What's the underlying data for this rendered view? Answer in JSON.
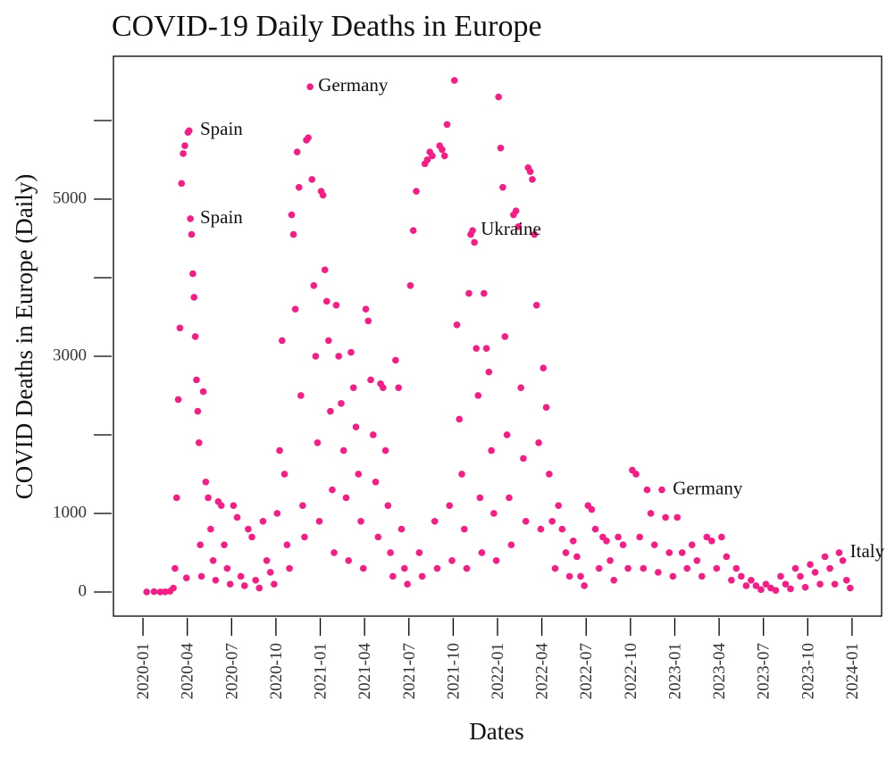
{
  "chart_data": {
    "type": "scatter",
    "title": "COVID-19 Daily Deaths in Europe",
    "x_label": "Dates",
    "y_label": "COVID Deaths in Europe (Daily)",
    "color": "#f51d86",
    "xlim": [
      "2019-11",
      "2024-03"
    ],
    "xticks": [
      "2020-01",
      "2020-04",
      "2020-07",
      "2020-10",
      "2021-01",
      "2021-04",
      "2021-07",
      "2021-10",
      "2022-01",
      "2022-04",
      "2022-07",
      "2022-10",
      "2023-01",
      "2023-04",
      "2023-07",
      "2023-10",
      "2024-01"
    ],
    "ylim": [
      -307,
      6818
    ],
    "yticks": [
      0,
      1000,
      3000,
      5000
    ],
    "y_minor_ticks": [
      2000,
      4000,
      6000
    ],
    "x": [
      "2020-01",
      "2020-01",
      "2020-02",
      "2020-02",
      "2020-02",
      "2020-03",
      "2020-03",
      "2020-03",
      "2020-03",
      "2020-03",
      "2020-03",
      "2020-03",
      "2020-03",
      "2020-03",
      "2020-04",
      "2020-04",
      "2020-04",
      "2020-04",
      "2020-04",
      "2020-04",
      "2020-04",
      "2020-04",
      "2020-04",
      "2020-04",
      "2020-04",
      "2020-04",
      "2020-05",
      "2020-05",
      "2020-05",
      "2020-05",
      "2020-05",
      "2020-05",
      "2020-06",
      "2020-06",
      "2020-06",
      "2020-06",
      "2020-06",
      "2020-07",
      "2020-07",
      "2020-07",
      "2020-07",
      "2020-08",
      "2020-08",
      "2020-08",
      "2020-08",
      "2020-09",
      "2020-09",
      "2020-09",
      "2020-09",
      "2020-10",
      "2020-10",
      "2020-10",
      "2020-10",
      "2020-10",
      "2020-10",
      "2020-11",
      "2020-11",
      "2020-11",
      "2020-11",
      "2020-11",
      "2020-11",
      "2020-11",
      "2020-11",
      "2020-12",
      "2020-12",
      "2020-12",
      "2020-12",
      "2020-12",
      "2020-12",
      "2020-12",
      "2020-12",
      "2021-01",
      "2021-01",
      "2021-01",
      "2021-01",
      "2021-01",
      "2021-01",
      "2021-01",
      "2021-01",
      "2021-02",
      "2021-02",
      "2021-02",
      "2021-02",
      "2021-02",
      "2021-02",
      "2021-03",
      "2021-03",
      "2021-03",
      "2021-03",
      "2021-03",
      "2021-03",
      "2021-04",
      "2021-04",
      "2021-04",
      "2021-04",
      "2021-04",
      "2021-04",
      "2021-05",
      "2021-05",
      "2021-05",
      "2021-05",
      "2021-05",
      "2021-05",
      "2021-06",
      "2021-06",
      "2021-06",
      "2021-06",
      "2021-06",
      "2021-07",
      "2021-07",
      "2021-07",
      "2021-07",
      "2021-07",
      "2021-08",
      "2021-08",
      "2021-08",
      "2021-08",
      "2021-08",
      "2021-08",
      "2021-09",
      "2021-09",
      "2021-09",
      "2021-09",
      "2021-09",
      "2021-09",
      "2021-10",
      "2021-10",
      "2021-10",
      "2021-10",
      "2021-10",
      "2021-10",
      "2021-11",
      "2021-11",
      "2021-11",
      "2021-11",
      "2021-11",
      "2021-11",
      "2021-11",
      "2021-11",
      "2021-12",
      "2021-12",
      "2021-12",
      "2021-12",
      "2021-12",
      "2021-12",
      "2022-01",
      "2022-01",
      "2022-01",
      "2022-01",
      "2022-01",
      "2022-01",
      "2022-01",
      "2022-02",
      "2022-02",
      "2022-02",
      "2022-02",
      "2022-02",
      "2022-02",
      "2022-03",
      "2022-03",
      "2022-03",
      "2022-03",
      "2022-03",
      "2022-03",
      "2022-03",
      "2022-04",
      "2022-04",
      "2022-04",
      "2022-04",
      "2022-04",
      "2022-05",
      "2022-05",
      "2022-05",
      "2022-05",
      "2022-06",
      "2022-06",
      "2022-06",
      "2022-06",
      "2022-07",
      "2022-07",
      "2022-07",
      "2022-07",
      "2022-08",
      "2022-08",
      "2022-08",
      "2022-08",
      "2022-09",
      "2022-09",
      "2022-09",
      "2022-10",
      "2022-10",
      "2022-10",
      "2022-10",
      "2022-11",
      "2022-11",
      "2022-11",
      "2022-11",
      "2022-12",
      "2022-12",
      "2022-12",
      "2022-12",
      "2023-01",
      "2023-01",
      "2023-01",
      "2023-02",
      "2023-02",
      "2023-02",
      "2023-03",
      "2023-03",
      "2023-03",
      "2023-04",
      "2023-04",
      "2023-04",
      "2023-05",
      "2023-05",
      "2023-05",
      "2023-06",
      "2023-06",
      "2023-06",
      "2023-07",
      "2023-07",
      "2023-07",
      "2023-08",
      "2023-08",
      "2023-08",
      "2023-09",
      "2023-09",
      "2023-09",
      "2023-10",
      "2023-10",
      "2023-10",
      "2023-11",
      "2023-11",
      "2023-11",
      "2023-12",
      "2023-12",
      "2023-12",
      "2023-12"
    ],
    "values": [
      0,
      5,
      0,
      2,
      10,
      50,
      300,
      1200,
      2450,
      3360,
      5200,
      5580,
      5680,
      180,
      5850,
      5870,
      4750,
      4550,
      4050,
      3750,
      3250,
      2700,
      2300,
      1900,
      600,
      200,
      2550,
      1400,
      1200,
      800,
      400,
      150,
      1150,
      1100,
      600,
      300,
      100,
      1100,
      950,
      200,
      80,
      800,
      700,
      150,
      50,
      900,
      400,
      250,
      100,
      1000,
      1800,
      3200,
      1500,
      600,
      300,
      4800,
      4550,
      3600,
      5600,
      5150,
      2500,
      1100,
      700,
      5750,
      5780,
      6430,
      5250,
      3900,
      3000,
      1900,
      900,
      5100,
      5050,
      4100,
      3700,
      3200,
      2300,
      1300,
      500,
      3650,
      3000,
      2400,
      1800,
      1200,
      400,
      3050,
      2600,
      2100,
      1500,
      900,
      300,
      3600,
      3450,
      2700,
      2000,
      1400,
      700,
      2650,
      2600,
      1800,
      1100,
      500,
      200,
      2950,
      2600,
      800,
      300,
      100,
      3900,
      4600,
      5100,
      500,
      200,
      5450,
      5500,
      5600,
      5550,
      900,
      300,
      5680,
      5630,
      5550,
      5950,
      1100,
      400,
      6510,
      3400,
      2200,
      1500,
      800,
      300,
      3800,
      4550,
      4600,
      4450,
      3100,
      2500,
      1200,
      500,
      3800,
      3100,
      2800,
      1800,
      1000,
      400,
      6300,
      5650,
      5150,
      3250,
      2000,
      1200,
      600,
      4800,
      4850,
      4650,
      2600,
      1700,
      900,
      5400,
      5350,
      5250,
      4550,
      3650,
      1900,
      800,
      2850,
      2350,
      1500,
      900,
      300,
      1100,
      800,
      500,
      200,
      650,
      450,
      200,
      80,
      1100,
      1050,
      800,
      300,
      700,
      650,
      400,
      150,
      700,
      600,
      300,
      1550,
      1500,
      700,
      300,
      1300,
      1000,
      600,
      250,
      1300,
      950,
      500,
      200,
      950,
      500,
      300,
      600,
      400,
      200,
      700,
      650,
      300,
      700,
      450,
      150,
      300,
      200,
      80,
      150,
      80,
      30,
      100,
      50,
      20,
      200,
      100,
      40,
      300,
      200,
      60,
      350,
      250,
      100,
      450,
      300,
      100,
      500,
      400,
      150,
      50
    ],
    "annotations": [
      {
        "text": "Spain",
        "x": "2020-04",
        "y": 5870
      },
      {
        "text": "Spain",
        "x": "2020-04",
        "y": 4750
      },
      {
        "text": "Germany",
        "x": "2020-12",
        "y": 6430
      },
      {
        "text": "Ukraine",
        "x": "2021-11",
        "y": 4600
      },
      {
        "text": "Germany",
        "x": "2022-12",
        "y": 1300
      },
      {
        "text": "Italy",
        "x": "2023-12",
        "y": 500
      }
    ]
  }
}
